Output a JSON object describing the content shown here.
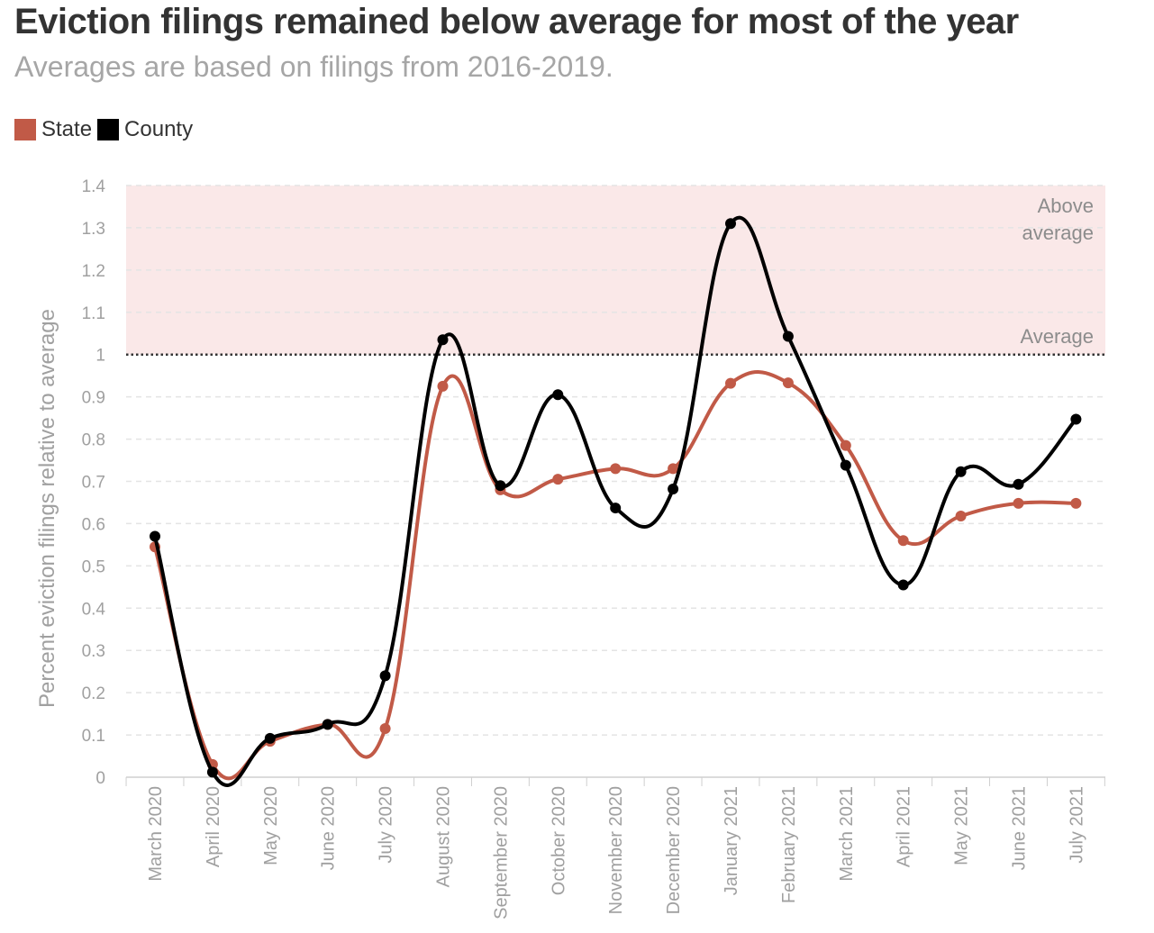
{
  "title": "Eviction filings remained below average for most of the year",
  "subtitle": "Averages are based on filings from 2016-2019.",
  "legend": [
    {
      "name": "State",
      "color": "#c15a47"
    },
    {
      "name": "County",
      "color": "#000000"
    }
  ],
  "colors": {
    "band": "#fae8e8",
    "grid": "#e4e4e4",
    "axis_text": "#a0a0a0",
    "annotation": "#8c8c8c"
  },
  "chart_data": {
    "type": "line",
    "ylabel": "Percent eviction filings relative to average",
    "xlabel": "",
    "ylim": [
      0,
      1.4
    ],
    "yticks": [
      "0",
      "0.1",
      "0.2",
      "0.3",
      "0.4",
      "0.5",
      "0.6",
      "0.7",
      "0.8",
      "0.9",
      "1",
      "1.1",
      "1.2",
      "1.3",
      "1.4"
    ],
    "categories": [
      "March 2020",
      "April 2020",
      "May 2020",
      "June 2020",
      "July 2020",
      "August 2020",
      "September 2020",
      "October 2020",
      "November 2020",
      "December 2020",
      "January 2021",
      "February 2021",
      "March 2021",
      "April 2021",
      "May 2021",
      "June 2021",
      "July 2021"
    ],
    "series": [
      {
        "name": "State",
        "color": "#c15a47",
        "values": [
          0.545,
          0.03,
          0.085,
          0.125,
          0.115,
          0.925,
          0.68,
          0.705,
          0.73,
          0.73,
          0.932,
          0.933,
          0.785,
          0.56,
          0.618,
          0.648,
          0.648
        ]
      },
      {
        "name": "County",
        "color": "#000000",
        "values": [
          0.57,
          0.012,
          0.092,
          0.125,
          0.24,
          1.035,
          0.69,
          0.905,
          0.637,
          0.682,
          1.31,
          1.043,
          0.738,
          0.455,
          0.723,
          0.693,
          0.847
        ]
      }
    ],
    "annotations": {
      "above_line1": "Above",
      "above_line2": "average",
      "average": "Average"
    },
    "reference_line": 1,
    "band": [
      1,
      1.4
    ],
    "grid": true,
    "legend_position": "top-left"
  }
}
